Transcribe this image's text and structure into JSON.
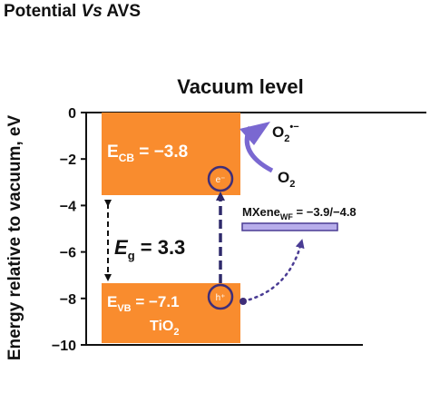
{
  "title": {
    "part1": "Potential ",
    "part2": "Vs",
    "part3": " AVS"
  },
  "y_axis": {
    "label": "Energy relative to vacuum, eV",
    "range": [
      -10,
      0
    ],
    "ticks": [
      "0",
      "−2",
      "−4",
      "−6",
      "−8",
      "−10"
    ],
    "tick_values": [
      0,
      -2,
      -4,
      -6,
      -8,
      -10
    ]
  },
  "vacuum_label": "Vacuum level",
  "cb": {
    "symbol": "E",
    "sub": "CB",
    "text": " = −3.8",
    "value": -3.8
  },
  "vb": {
    "symbol": "E",
    "sub": "VB",
    "text": " = −7.1",
    "value": -7.1
  },
  "gap": {
    "symbol": "E",
    "sub": "g",
    "text": " = 3.3",
    "value": 3.3
  },
  "material": {
    "main": "TiO",
    "sub": "2"
  },
  "electron": "e⁻",
  "hole": "h⁺",
  "o2_radical": {
    "main": "O",
    "sub": "2",
    "sup": "•−"
  },
  "o2": {
    "main": "O",
    "sub": "2"
  },
  "mxene": {
    "main": "MXene",
    "sub": "WF",
    "text": " = −3.9/−4.8",
    "value_low": -3.9,
    "value_high": -4.8
  },
  "colors": {
    "band": "#F98C2E",
    "circle": "#3F2E78",
    "mxene_fill": "#B7ADEB",
    "mxene_stroke": "#4A3C94",
    "arrow_purple": "#7A68D1",
    "dark_purple": "#2F2A6B"
  }
}
